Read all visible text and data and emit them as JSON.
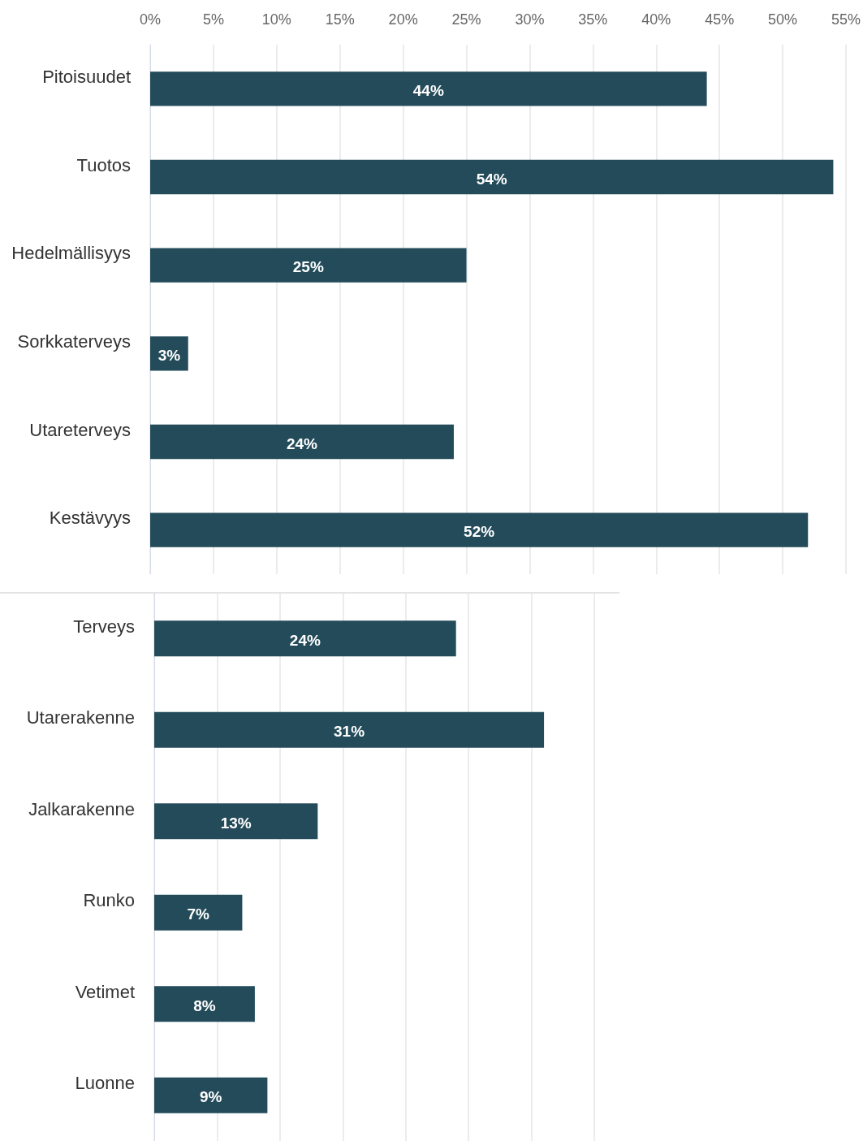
{
  "chart_data": [
    {
      "type": "bar",
      "orientation": "horizontal",
      "categories": [
        "Pitoisuudet",
        "Tuotos",
        "Hedelmällisyys",
        "Sorkkaterveys",
        "Utareterveys",
        "Kestävyys"
      ],
      "values": [
        44,
        54,
        25,
        3,
        24,
        52
      ],
      "value_labels": [
        "44%",
        "54%",
        "25%",
        "3%",
        "24%",
        "52%"
      ],
      "color": "#234b5a",
      "xlim": [
        0,
        55
      ],
      "xticks": [
        {
          "value": 0,
          "label": "0%"
        },
        {
          "value": 5,
          "label": "5%"
        },
        {
          "value": 10,
          "label": "10%"
        },
        {
          "value": 15,
          "label": "15%"
        },
        {
          "value": 20,
          "label": "20%"
        },
        {
          "value": 25,
          "label": "25%"
        },
        {
          "value": 30,
          "label": "30%"
        },
        {
          "value": 35,
          "label": "35%"
        },
        {
          "value": 40,
          "label": "40%"
        },
        {
          "value": 45,
          "label": "45%"
        },
        {
          "value": 50,
          "label": "50%"
        },
        {
          "value": 55,
          "label": "55%"
        }
      ],
      "grid": "x"
    },
    {
      "type": "bar",
      "orientation": "horizontal",
      "categories": [
        "Terveys",
        "Utarerakenne",
        "Jalkarakenne",
        "Runko",
        "Vetimet",
        "Luonne"
      ],
      "values": [
        24,
        31,
        13,
        7,
        8,
        9
      ],
      "value_labels": [
        "24%",
        "31%",
        "13%",
        "7%",
        "8%",
        "9%"
      ],
      "color": "#234b5a",
      "xlim": [
        0,
        37
      ],
      "xticks": [
        {
          "value": 0,
          "label": null
        },
        {
          "value": 5,
          "label": null
        },
        {
          "value": 10,
          "label": null
        },
        {
          "value": 15,
          "label": null
        },
        {
          "value": 20,
          "label": null
        },
        {
          "value": 25,
          "label": null
        },
        {
          "value": 30,
          "label": null
        },
        {
          "value": 35,
          "label": null
        }
      ],
      "grid": "x",
      "tick_labels": "y"
    }
  ]
}
